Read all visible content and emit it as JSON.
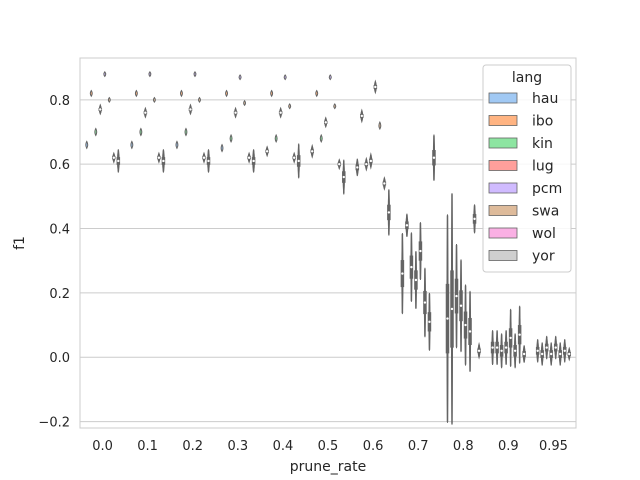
{
  "chart_data": {
    "type": "violin",
    "title": "",
    "xlabel": "prune_rate",
    "ylabel": "f1",
    "categories": [
      "0.0",
      "0.1",
      "0.2",
      "0.3",
      "0.4",
      "0.5",
      "0.6",
      "0.7",
      "0.8",
      "0.9",
      "0.95"
    ],
    "yticks": [
      -0.2,
      0.0,
      0.2,
      0.4,
      0.6,
      0.8
    ],
    "ytick_labels": [
      "−0.2",
      "0.0",
      "0.2",
      "0.4",
      "0.6",
      "0.8"
    ],
    "ylim": [
      -0.22,
      0.93
    ],
    "grid": true,
    "legend": {
      "title": "lang",
      "position": "top-right",
      "entries": [
        "hau",
        "ibo",
        "kin",
        "lug",
        "pcm",
        "swa",
        "wol",
        "yor"
      ]
    },
    "colors": {
      "hau": "#a1c9f4",
      "ibo": "#ffb482",
      "kin": "#8de5a1",
      "lug": "#ff9f9b",
      "pcm": "#d0bbff",
      "swa": "#debb9b",
      "wol": "#fab0e4",
      "yor": "#cfcfcf",
      "outline": "#646464",
      "grid": "#cccccc"
    },
    "series": [
      {
        "name": "hau",
        "values": [
          0.66,
          0.66,
          0.66,
          0.65,
          0.64,
          0.64,
          0.59,
          0.26,
          0.12,
          0.03,
          0.02
        ]
      },
      {
        "name": "ibo",
        "values": [
          0.82,
          0.82,
          0.82,
          0.82,
          0.82,
          0.82,
          0.75,
          0.41,
          0.15,
          0.03,
          0.01
        ]
      },
      {
        "name": "kin",
        "values": [
          0.7,
          0.7,
          0.7,
          0.68,
          0.68,
          0.68,
          0.6,
          0.28,
          0.19,
          0.02,
          0.03
        ]
      },
      {
        "name": "lug",
        "values": [
          0.77,
          0.76,
          0.77,
          0.76,
          0.76,
          0.73,
          0.61,
          0.24,
          0.16,
          0.03,
          0.01
        ]
      },
      {
        "name": "pcm",
        "values": [
          0.88,
          0.88,
          0.88,
          0.87,
          0.87,
          0.87,
          0.84,
          0.33,
          0.1,
          0.06,
          0.03
        ]
      },
      {
        "name": "swa",
        "values": [
          0.8,
          0.8,
          0.8,
          0.79,
          0.78,
          0.78,
          0.72,
          0.17,
          0.08,
          0.02,
          0.01
        ]
      },
      {
        "name": "wol",
        "values": [
          0.62,
          0.62,
          0.62,
          0.62,
          0.62,
          0.6,
          0.54,
          0.11,
          0.43,
          0.07,
          0.02
        ]
      },
      {
        "name": "yor",
        "values": [
          0.61,
          0.61,
          0.61,
          0.61,
          0.61,
          0.56,
          0.45,
          0.62,
          0.02,
          0.01,
          0.01
        ]
      }
    ],
    "spread": [
      {
        "name": "hau",
        "values": [
          0.006,
          0.006,
          0.006,
          0.006,
          0.008,
          0.01,
          0.015,
          0.07,
          0.18,
          0.03,
          0.02
        ]
      },
      {
        "name": "ibo",
        "values": [
          0.005,
          0.005,
          0.005,
          0.005,
          0.005,
          0.005,
          0.01,
          0.02,
          0.2,
          0.03,
          0.02
        ]
      },
      {
        "name": "kin",
        "values": [
          0.006,
          0.006,
          0.006,
          0.006,
          0.006,
          0.006,
          0.01,
          0.06,
          0.09,
          0.03,
          0.02
        ]
      },
      {
        "name": "lug",
        "values": [
          0.008,
          0.008,
          0.008,
          0.008,
          0.008,
          0.008,
          0.012,
          0.05,
          0.08,
          0.03,
          0.02
        ]
      },
      {
        "name": "pcm",
        "values": [
          0.004,
          0.004,
          0.004,
          0.004,
          0.004,
          0.004,
          0.01,
          0.05,
          0.07,
          0.05,
          0.02
        ]
      },
      {
        "name": "swa",
        "values": [
          0.004,
          0.004,
          0.004,
          0.004,
          0.004,
          0.004,
          0.006,
          0.06,
          0.07,
          0.03,
          0.02
        ]
      },
      {
        "name": "wol",
        "values": [
          0.008,
          0.008,
          0.008,
          0.008,
          0.008,
          0.008,
          0.01,
          0.05,
          0.025,
          0.05,
          0.02
        ]
      },
      {
        "name": "yor",
        "values": [
          0.02,
          0.02,
          0.02,
          0.02,
          0.03,
          0.03,
          0.04,
          0.04,
          0.012,
          0.015,
          0.01
        ]
      }
    ]
  }
}
